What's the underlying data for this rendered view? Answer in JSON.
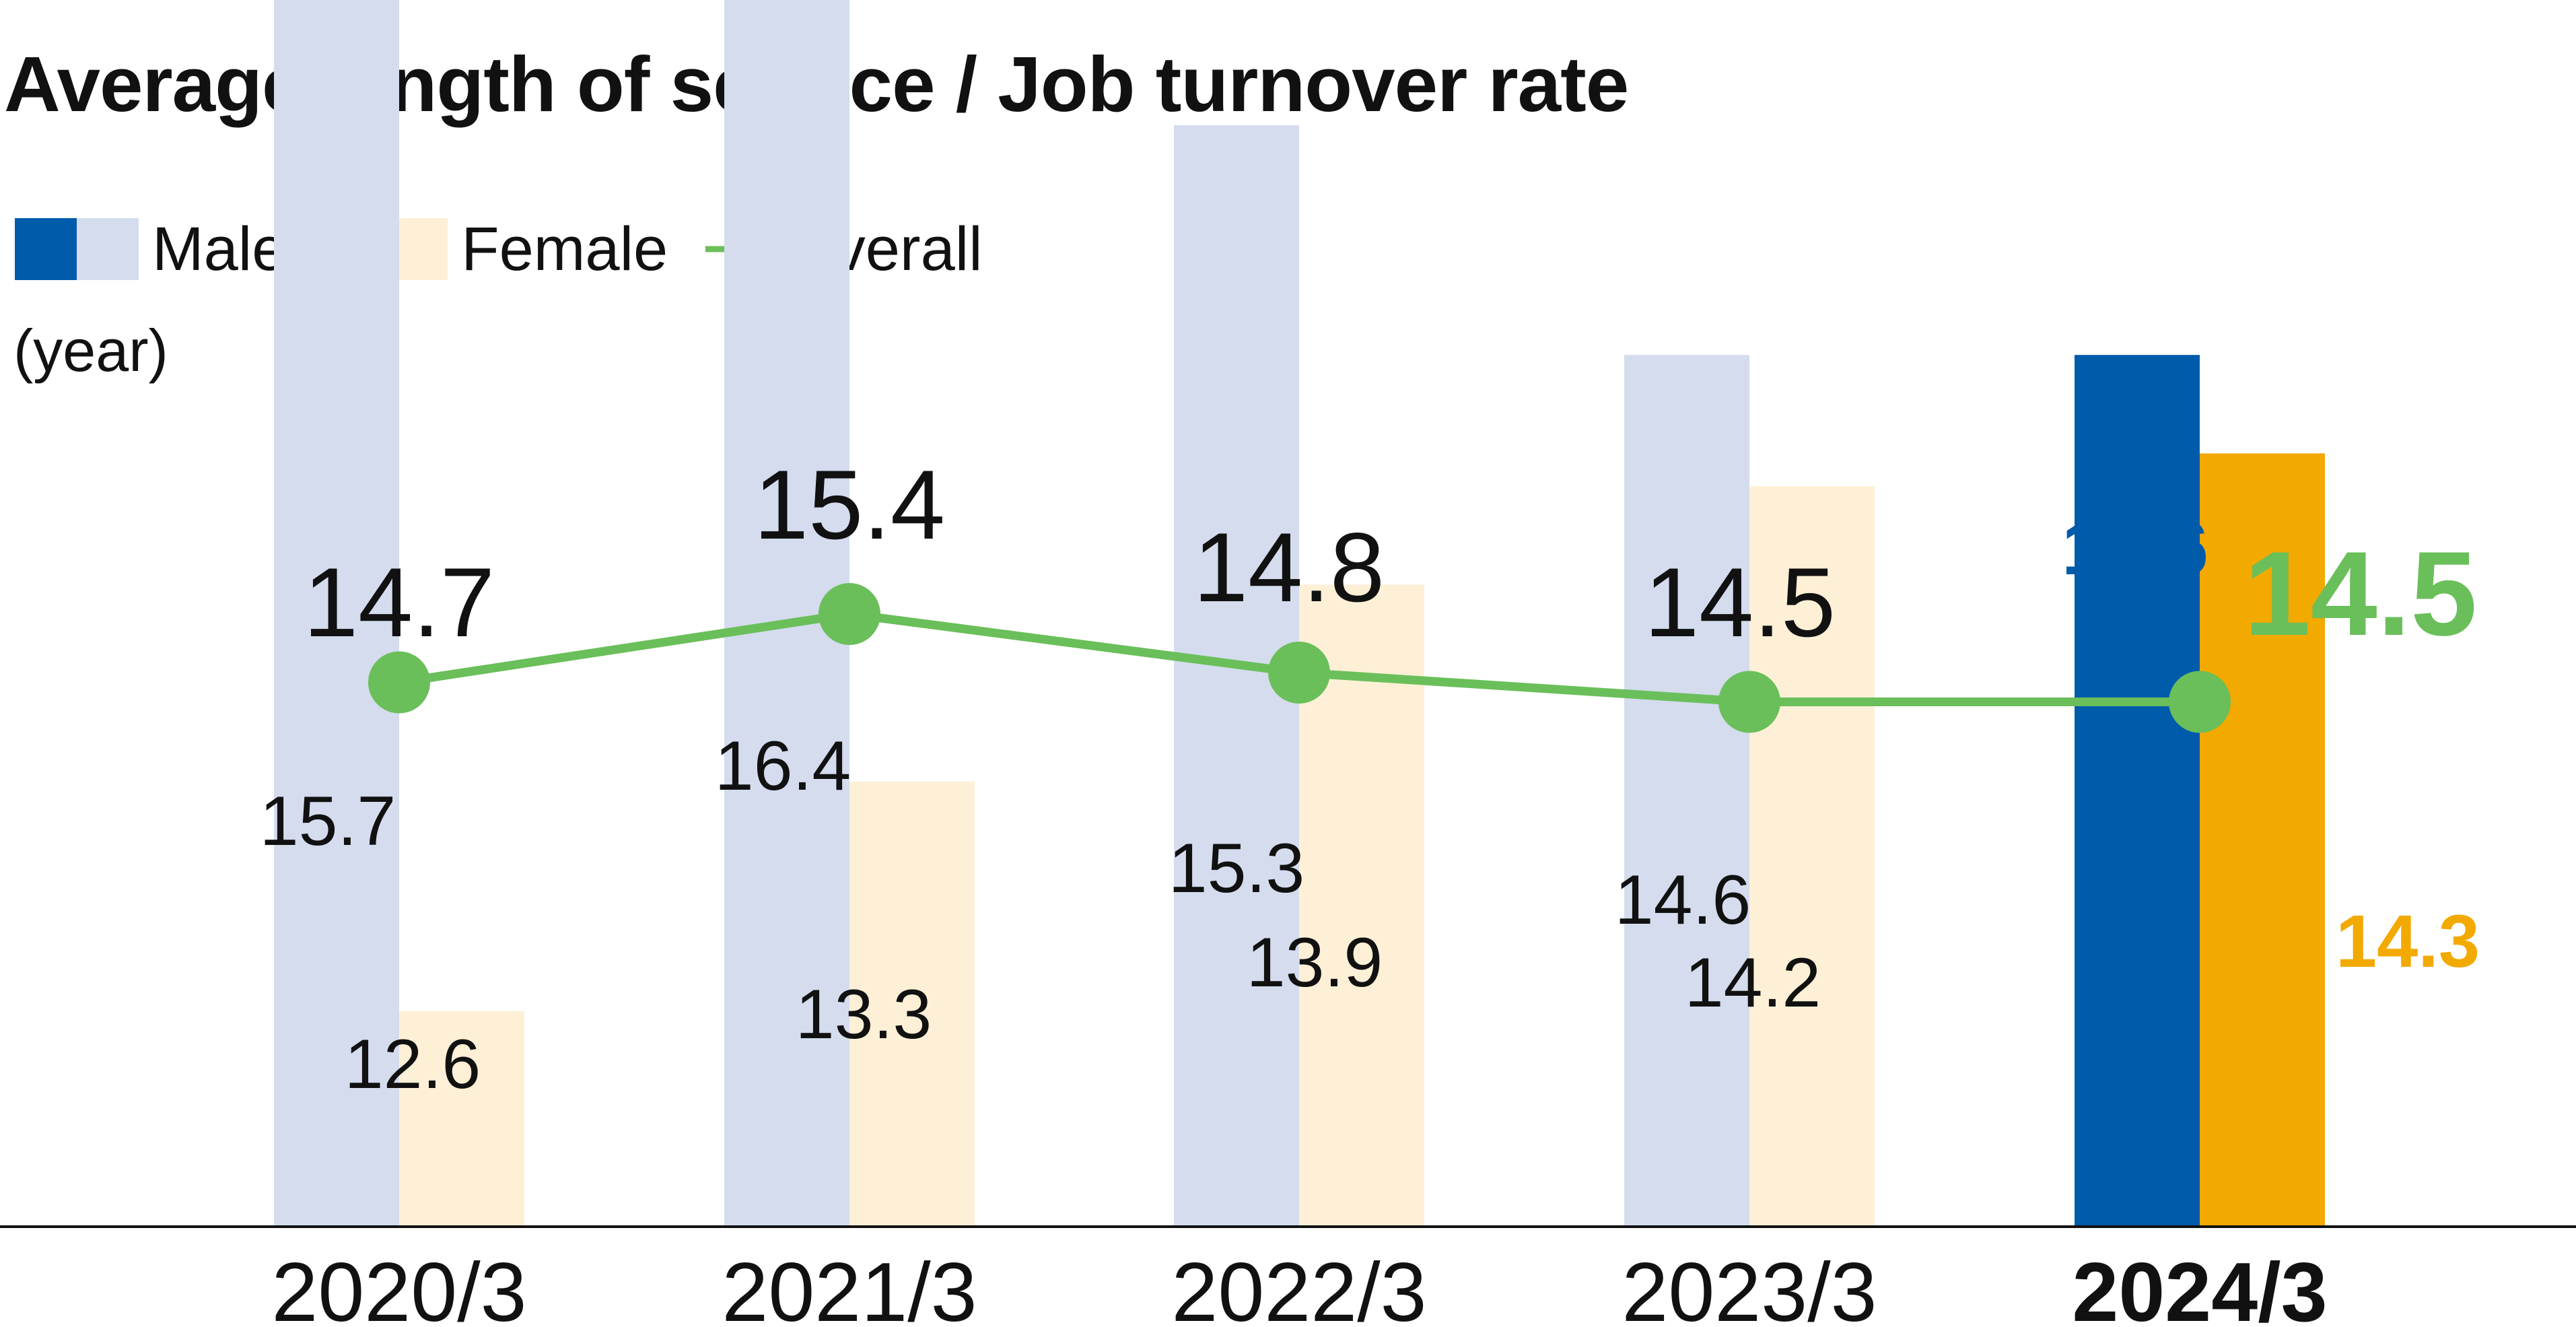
{
  "header": {
    "title": "Average length of service / Job turnover rate"
  },
  "legend": {
    "male_label": "Male",
    "female_label": "Female",
    "overall_label": "Overall"
  },
  "unit_label": "(year)",
  "colors": {
    "male_highlight": "#005bab",
    "male_faded": "#d4dcee",
    "female_highlight": "#f2a900",
    "female_faded": "#fdf0d6",
    "overall_line": "#6abf5a",
    "text": "#111111"
  },
  "chart_data": {
    "type": "bar",
    "categories": [
      "2020/3",
      "2021/3",
      "2022/3",
      "2023/3",
      "2024/3"
    ],
    "series": [
      {
        "name": "Male",
        "values": [
          15.7,
          16.4,
          15.3,
          14.6,
          14.6
        ]
      },
      {
        "name": "Female",
        "values": [
          12.6,
          13.3,
          13.9,
          14.2,
          14.3
        ]
      },
      {
        "name": "Overall",
        "type": "line",
        "values": [
          14.7,
          15.4,
          14.8,
          14.5,
          14.5
        ]
      }
    ],
    "value_labels": {
      "male": [
        "15.7",
        "16.4",
        "15.3",
        "14.6",
        "14.6"
      ],
      "female": [
        "12.6",
        "13.3",
        "13.9",
        "14.2",
        "14.3"
      ],
      "overall": [
        "14.7",
        "15.4",
        "14.8",
        "14.5",
        "14.5"
      ]
    },
    "highlight_category": "2024/3",
    "title": "Average length of service / Job turnover rate",
    "xlabel": "",
    "ylabel": "(year)",
    "ylim": [
      0,
      16.4
    ],
    "grid": false,
    "legend_position": "top-left"
  }
}
